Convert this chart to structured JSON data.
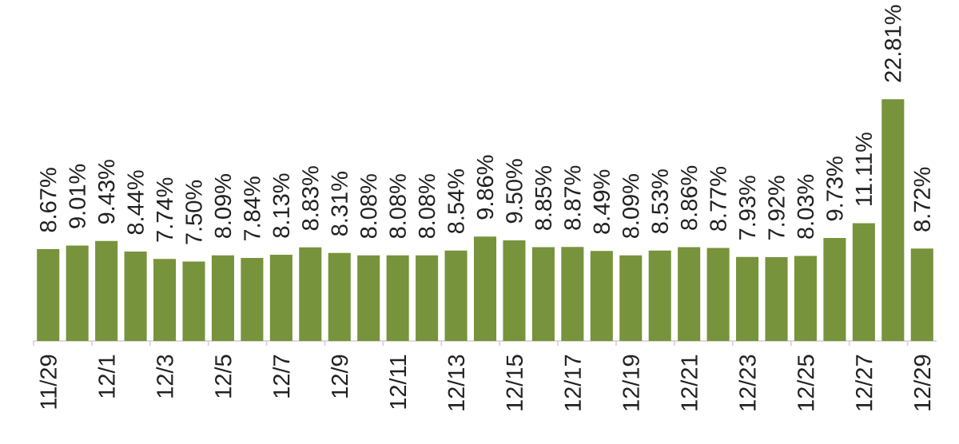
{
  "chart_data": {
    "type": "bar",
    "categories": [
      "11/29",
      null,
      "12/1",
      null,
      "12/3",
      null,
      "12/5",
      null,
      "12/7",
      null,
      "12/9",
      null,
      "12/11",
      null,
      "12/13",
      null,
      "12/15",
      null,
      "12/17",
      null,
      "12/19",
      null,
      "12/21",
      null,
      "12/23",
      null,
      "12/25",
      null,
      "12/27",
      null,
      "12/29"
    ],
    "values": [
      8.67,
      9.01,
      9.43,
      8.44,
      7.74,
      7.5,
      8.09,
      7.84,
      8.13,
      8.83,
      8.31,
      8.08,
      8.08,
      8.08,
      8.54,
      9.86,
      9.5,
      8.85,
      8.87,
      8.49,
      8.09,
      8.53,
      8.86,
      8.77,
      7.93,
      7.92,
      8.03,
      9.73,
      11.11,
      22.81,
      8.72
    ],
    "value_labels": [
      "8.67%",
      "9.01%",
      "9.43%",
      "8.44%",
      "7.74%",
      "7.50%",
      "8.09%",
      "7.84%",
      "8.13%",
      "8.83%",
      "8.31%",
      "8.08%",
      "8.08%",
      "8.08%",
      "8.54%",
      "9.86%",
      "9.50%",
      "8.85%",
      "8.87%",
      "8.49%",
      "8.09%",
      "8.53%",
      "8.86%",
      "8.77%",
      "7.93%",
      "7.92%",
      "8.03%",
      "9.73%",
      "11.11%",
      "22.81%",
      "8.72%"
    ],
    "color": "#77933c"
  }
}
